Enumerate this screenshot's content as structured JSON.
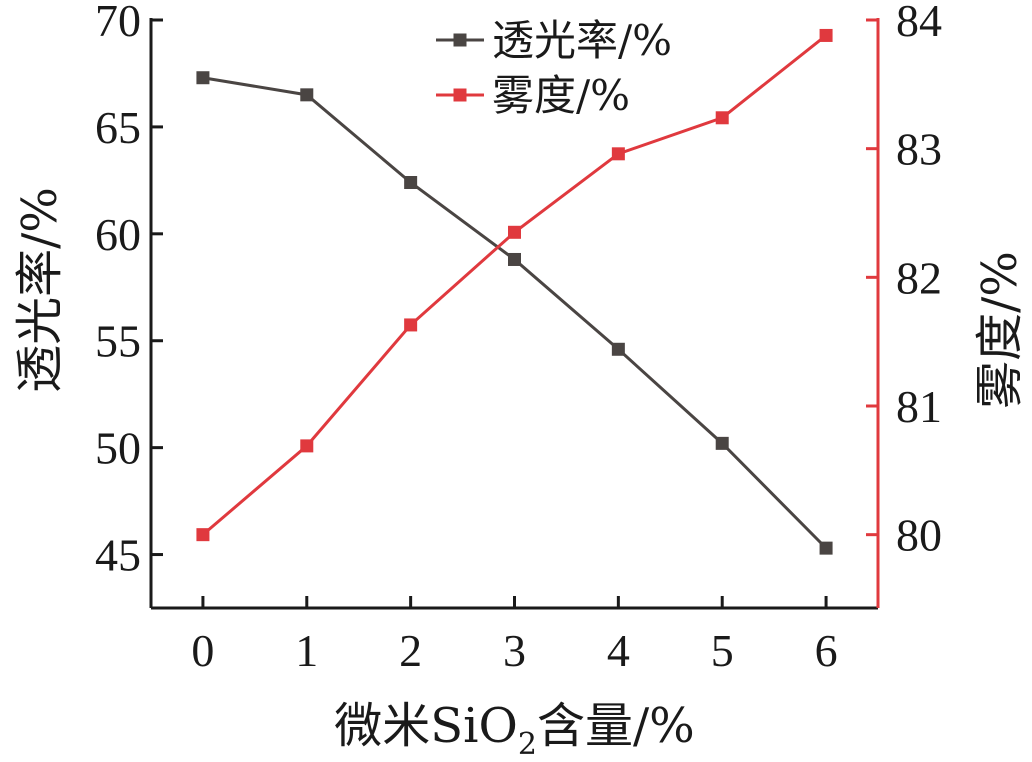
{
  "chart_data": {
    "type": "line",
    "x": [
      0,
      1,
      2,
      3,
      4,
      5,
      6
    ],
    "xticks": [
      "0",
      "1",
      "2",
      "3",
      "4",
      "5",
      "6"
    ],
    "xlabel_parts": {
      "pre": "微米SiO",
      "sub": "2",
      "post": "含量/%"
    },
    "xlim": [
      -0.5,
      6.5
    ],
    "left_axis": {
      "label": "透光率/%",
      "ylim": [
        42.5,
        70
      ],
      "ticks": [
        "45",
        "50",
        "55",
        "60",
        "65",
        "70"
      ],
      "tick_values": [
        45,
        50,
        55,
        60,
        65,
        70
      ]
    },
    "right_axis": {
      "label": "雾度/%",
      "ylim": [
        79.43,
        84
      ],
      "ticks": [
        "80",
        "81",
        "82",
        "83",
        "84"
      ],
      "tick_values": [
        80,
        81,
        82,
        83,
        84
      ]
    },
    "series": [
      {
        "name": "透光率/%",
        "axis": "left",
        "color": "#4a4543",
        "marker": "square",
        "values": [
          67.3,
          66.5,
          62.4,
          58.8,
          54.6,
          50.2,
          45.3
        ]
      },
      {
        "name": "雾度/%",
        "axis": "right",
        "color": "#e0393e",
        "marker": "square",
        "values": [
          80.0,
          80.69,
          81.63,
          82.35,
          82.96,
          83.24,
          83.88
        ]
      }
    ],
    "legend_position": "top-center",
    "grid": false
  }
}
